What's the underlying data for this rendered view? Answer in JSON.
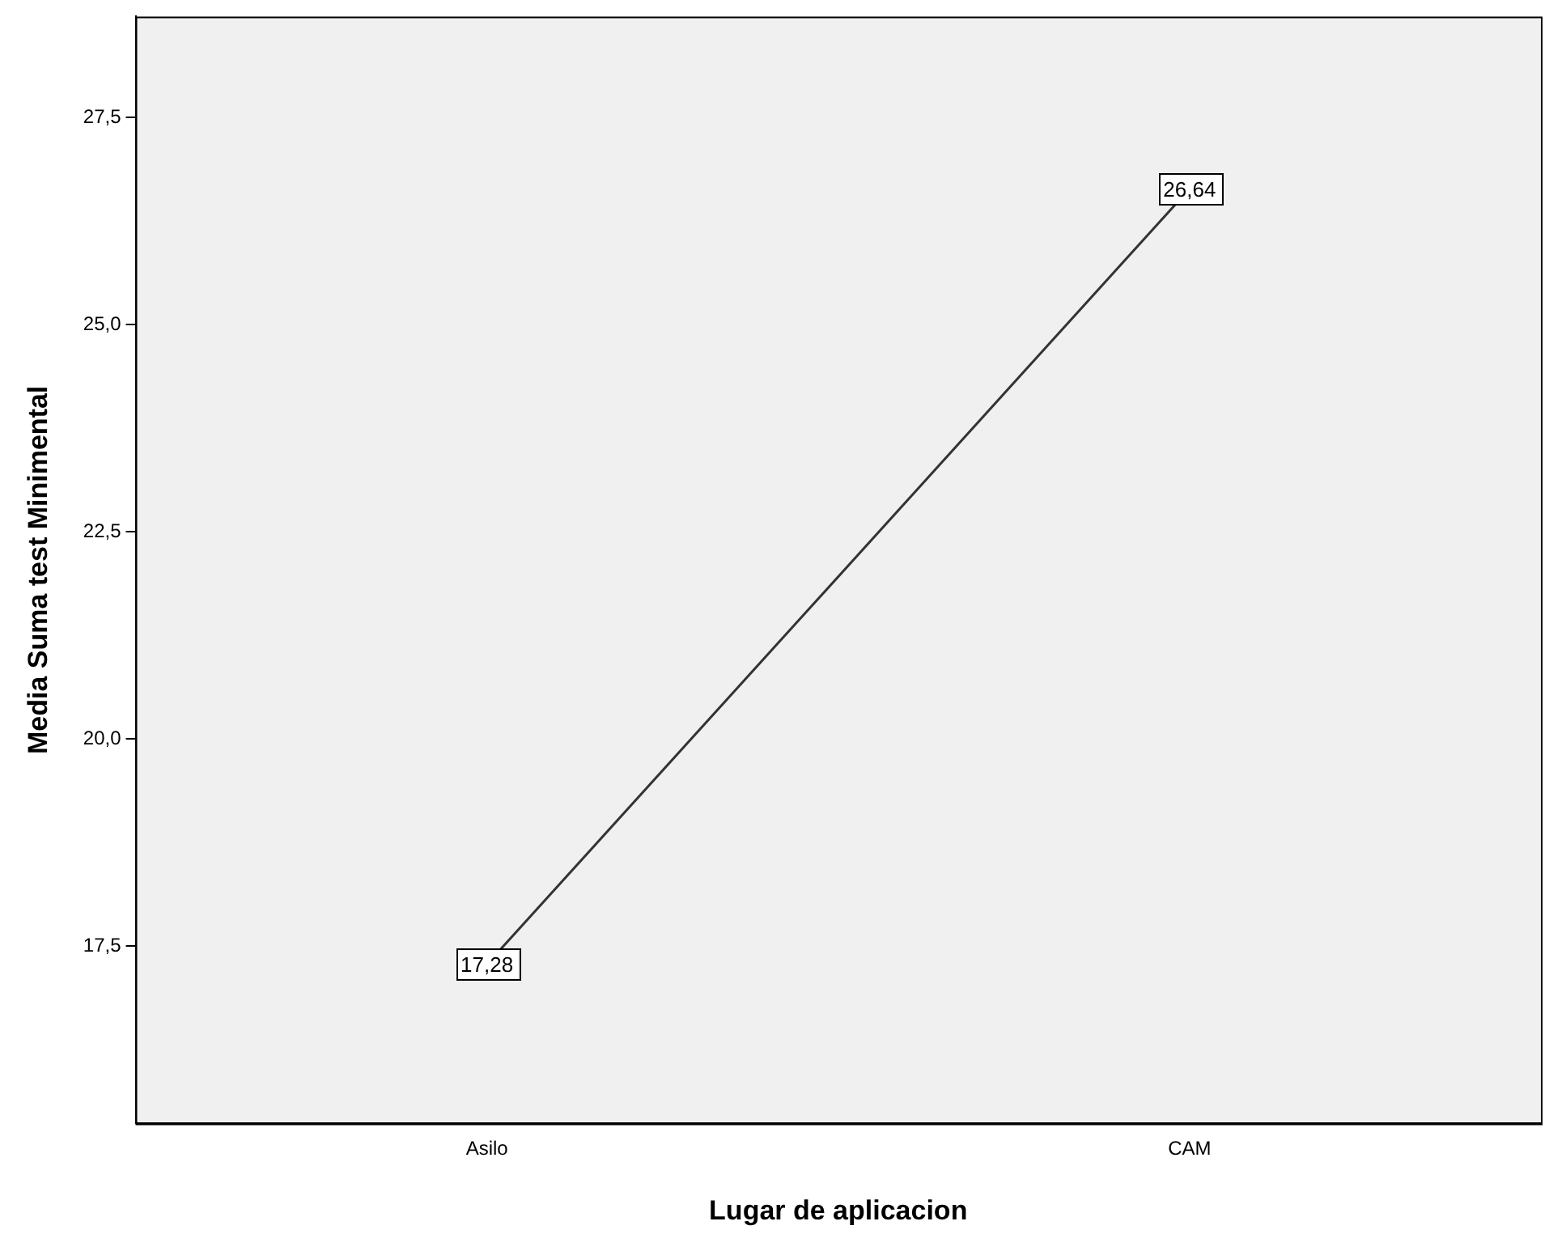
{
  "chart_data": {
    "type": "line",
    "xlabel": "Lugar de aplicacion",
    "ylabel": "Media Suma test Minimental",
    "categories": [
      "Asilo",
      "CAM"
    ],
    "series": [
      {
        "color": "#333333",
        "values": [
          17.28,
          26.64
        ],
        "value_labels": [
          "17,28",
          "26,64"
        ]
      }
    ],
    "ylim": [
      15.36,
      28.72
    ],
    "yticks": [
      {
        "value": 17.5,
        "label": "17,5"
      },
      {
        "value": 20,
        "label": "20,0"
      },
      {
        "value": 22.5,
        "label": "22,5"
      },
      {
        "value": 25,
        "label": "25,0"
      },
      {
        "value": 27.5,
        "label": "27,5"
      }
    ],
    "grid": false,
    "legend": false,
    "marker": "square",
    "line_style": "solid"
  }
}
